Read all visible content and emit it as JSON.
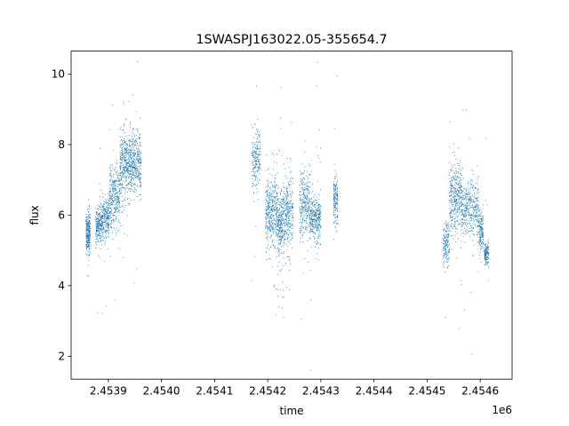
{
  "chart_data": {
    "type": "scatter",
    "title": "1SWASPJ163022.05-355654.7",
    "xlabel": "time",
    "ylabel": "flux",
    "x_offset_label": "1e6",
    "xlim": [
      2453830,
      2454660
    ],
    "ylim": [
      1.35,
      10.65
    ],
    "x_ticks": [
      2453900,
      2454000,
      2454100,
      2454200,
      2454300,
      2454400,
      2454500,
      2454600
    ],
    "x_tick_labels": [
      "2.4539",
      "2.4540",
      "2.4541",
      "2.4542",
      "2.4543",
      "2.4544",
      "2.4545",
      "2.4546"
    ],
    "y_ticks": [
      2,
      4,
      6,
      8,
      10
    ],
    "y_tick_labels": [
      "2",
      "4",
      "6",
      "8",
      "10"
    ],
    "grid": false,
    "legend": "none",
    "marker_color": "#1f77b4",
    "point_groups": [
      {
        "x_range": [
          2453858,
          2453866
        ],
        "y_center": 5.5,
        "y_spread": 0.3,
        "count": 260,
        "outlier_frac": 0.03
      },
      {
        "x_range": [
          2453876,
          2453888
        ],
        "y_center": 5.7,
        "y_spread": 0.25,
        "count": 220,
        "outlier_frac": 0.03
      },
      {
        "x_range": [
          2453888,
          2453902
        ],
        "y_center": 5.9,
        "y_spread": 0.3,
        "count": 220,
        "outlier_frac": 0.03
      },
      {
        "x_range": [
          2453902,
          2453922
        ],
        "y_center": 6.5,
        "y_spread": 0.45,
        "count": 300,
        "outlier_frac": 0.04
      },
      {
        "x_range": [
          2453922,
          2453944
        ],
        "y_center": 7.4,
        "y_spread": 0.45,
        "count": 420,
        "outlier_frac": 0.05
      },
      {
        "x_range": [
          2453944,
          2453962
        ],
        "y_center": 7.5,
        "y_spread": 0.45,
        "count": 300,
        "outlier_frac": 0.05
      },
      {
        "x_range": [
          2454170,
          2454186
        ],
        "y_center": 7.6,
        "y_spread": 0.45,
        "count": 200,
        "outlier_frac": 0.05
      },
      {
        "x_range": [
          2454196,
          2454218
        ],
        "y_center": 6.1,
        "y_spread": 0.45,
        "count": 380,
        "outlier_frac": 0.08
      },
      {
        "x_range": [
          2454218,
          2454232
        ],
        "y_center": 5.8,
        "y_spread": 0.45,
        "count": 300,
        "outlier_frac": 0.16
      },
      {
        "x_range": [
          2454232,
          2454248
        ],
        "y_center": 6.0,
        "y_spread": 0.5,
        "count": 240,
        "outlier_frac": 0.08
      },
      {
        "x_range": [
          2454260,
          2454280
        ],
        "y_center": 6.3,
        "y_spread": 0.45,
        "count": 280,
        "outlier_frac": 0.06
      },
      {
        "x_range": [
          2454280,
          2454300
        ],
        "y_center": 5.9,
        "y_spread": 0.3,
        "count": 320,
        "outlier_frac": 0.08
      },
      {
        "x_range": [
          2454324,
          2454332
        ],
        "y_center": 6.4,
        "y_spread": 0.35,
        "count": 160,
        "outlier_frac": 0.04
      },
      {
        "x_range": [
          2454530,
          2454542
        ],
        "y_center": 5.2,
        "y_spread": 0.3,
        "count": 160,
        "outlier_frac": 0.03
      },
      {
        "x_range": [
          2454542,
          2454566
        ],
        "y_center": 6.5,
        "y_spread": 0.5,
        "count": 380,
        "outlier_frac": 0.04
      },
      {
        "x_range": [
          2454566,
          2454598
        ],
        "y_center": 6.2,
        "y_spread": 0.4,
        "count": 360,
        "outlier_frac": 0.04
      },
      {
        "x_range": [
          2454598,
          2454606
        ],
        "y_center": 5.5,
        "y_spread": 0.3,
        "count": 140,
        "outlier_frac": 0.03
      },
      {
        "x_range": [
          2454608,
          2454616
        ],
        "y_center": 4.9,
        "y_spread": 0.15,
        "count": 140,
        "outlier_frac": 0.02
      }
    ]
  }
}
